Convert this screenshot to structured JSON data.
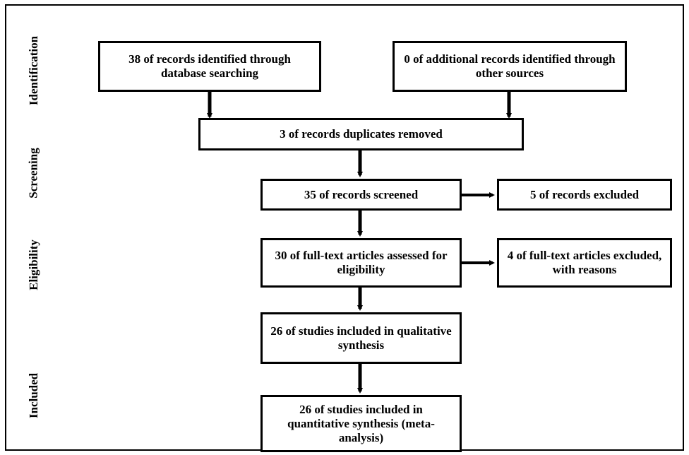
{
  "stages": {
    "identification": "Identification",
    "screening": "Screening",
    "eligibility": "Eligibility",
    "included": "Included"
  },
  "boxes": {
    "database_records": "38 of records identified through database searching",
    "other_records": "0 of additional records identified through other sources",
    "duplicates_removed": "3 of records duplicates removed",
    "records_screened": "35 of records screened",
    "records_excluded": "5 of records excluded",
    "fulltext_assessed": "30 of full-text articles assessed for eligibility",
    "fulltext_excluded": "4 of full-text articles excluded, with reasons",
    "qualitative": "26 of studies included in qualitative synthesis",
    "quantitative": "26 of studies included in quantitative synthesis (meta-analysis)"
  }
}
